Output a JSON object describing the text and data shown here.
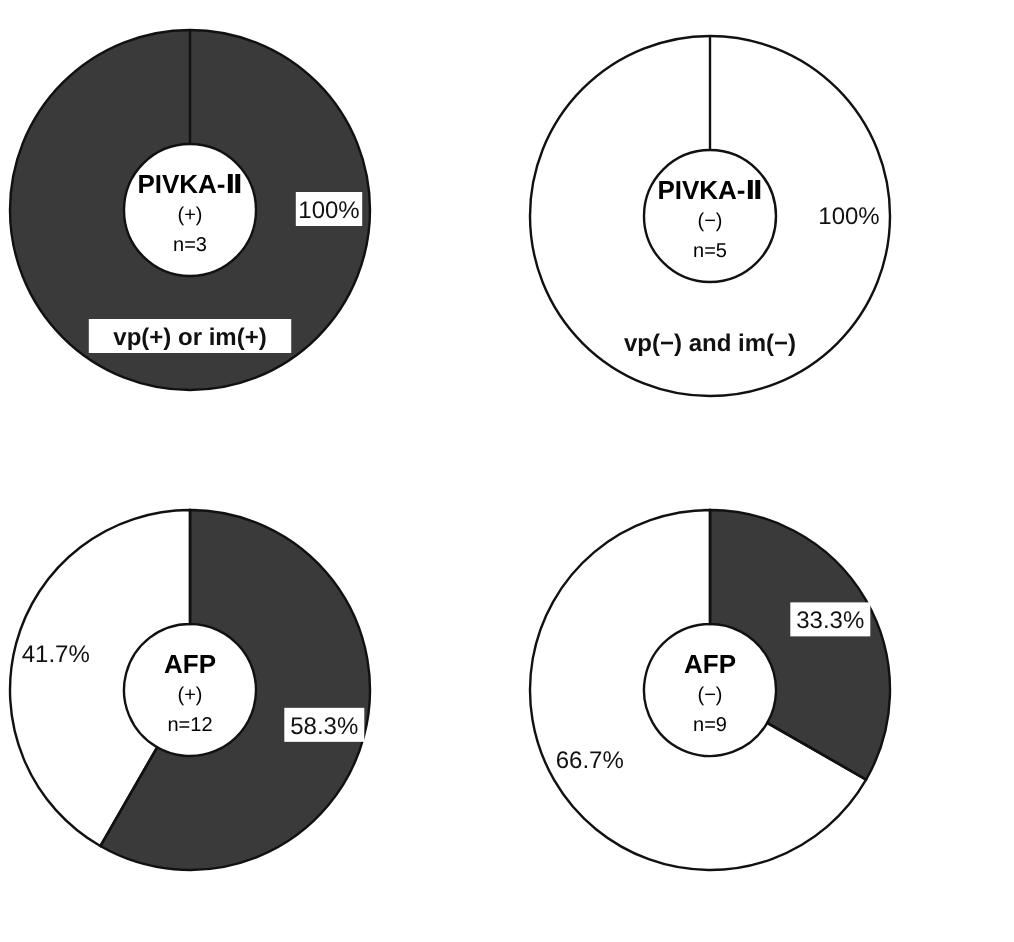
{
  "chart_data": [
    {
      "type": "donut",
      "title": "PIVKA-Ⅱ",
      "subtitle": "(+)",
      "annotations": [
        "n=3"
      ],
      "categories": [
        "vp(+) or im(+)"
      ],
      "values": [
        100
      ],
      "colors": [
        "#3a3a3a"
      ],
      "value_labels": [
        "100%"
      ]
    },
    {
      "type": "donut",
      "title": "PIVKA-Ⅱ",
      "subtitle": "(−)",
      "annotations": [
        "n=5"
      ],
      "categories": [
        "vp(−) and im(−)"
      ],
      "values": [
        100
      ],
      "colors": [
        "#ffffff"
      ],
      "value_labels": [
        "100%"
      ]
    },
    {
      "type": "donut",
      "title": "AFP",
      "subtitle": "(+)",
      "annotations": [
        "n=12"
      ],
      "categories": [
        null,
        null
      ],
      "values": [
        58.3,
        41.7
      ],
      "colors": [
        "#3a3a3a",
        "#ffffff"
      ],
      "value_labels": [
        "58.3%",
        "41.7%"
      ]
    },
    {
      "type": "donut",
      "title": "AFP",
      "subtitle": "(−)",
      "annotations": [
        "n=9"
      ],
      "categories": [
        null,
        null
      ],
      "values": [
        33.3,
        66.7
      ],
      "colors": [
        "#3a3a3a",
        "#ffffff"
      ],
      "value_labels": [
        "33.3%",
        "66.7%"
      ]
    }
  ]
}
